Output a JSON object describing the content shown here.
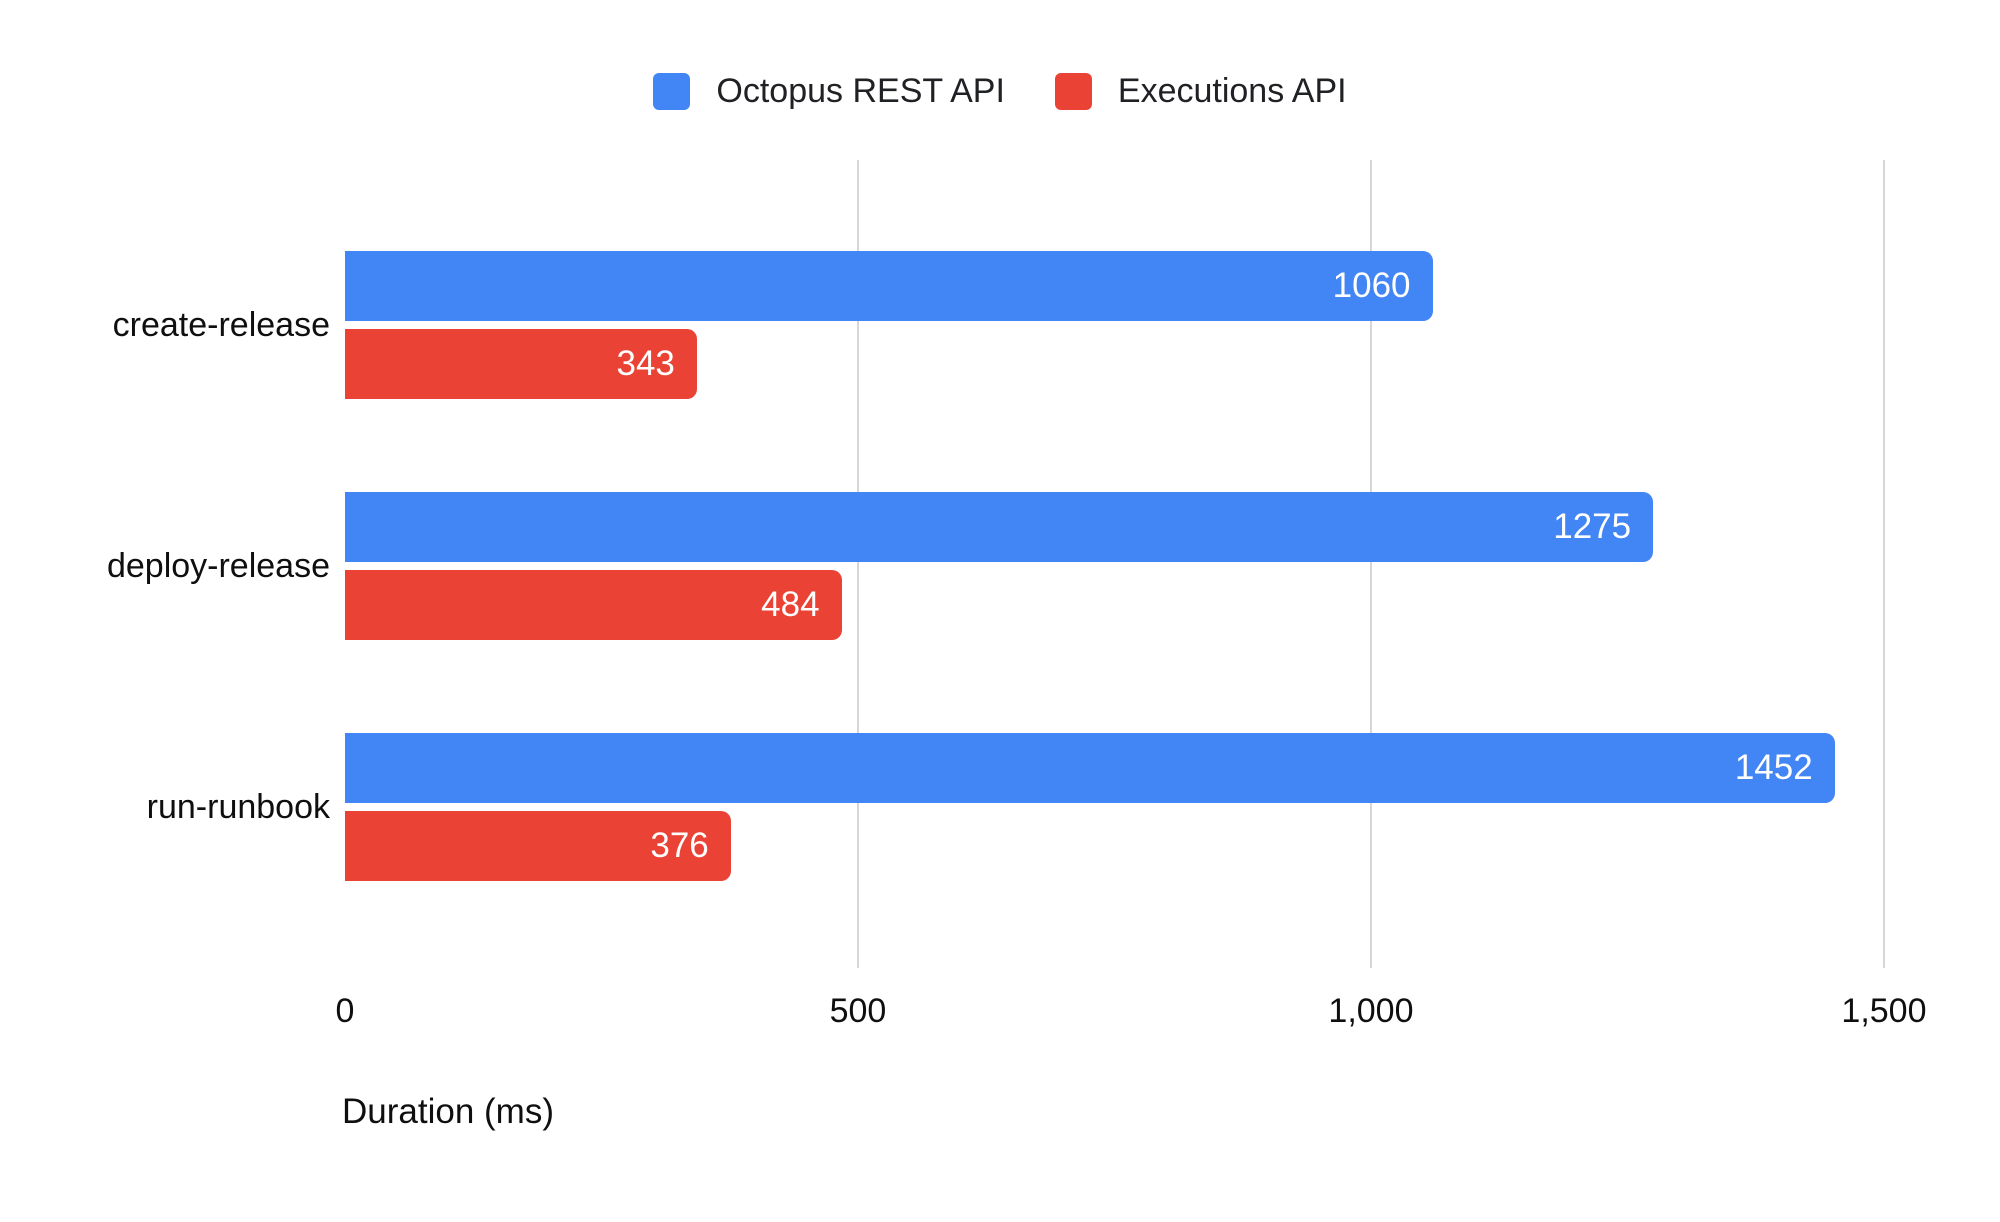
{
  "chart_data": {
    "type": "bar",
    "orientation": "horizontal",
    "title": "",
    "xlabel": "Duration (ms)",
    "ylabel": "",
    "categories": [
      "create-release",
      "deploy-release",
      "run-runbook"
    ],
    "series": [
      {
        "name": "Octopus REST API",
        "color": "#4285F4",
        "values": [
          1060,
          1275,
          1452
        ]
      },
      {
        "name": "Executions API",
        "color": "#EA4335",
        "values": [
          343,
          484,
          376
        ]
      }
    ],
    "x_ticks": [
      {
        "label": "0",
        "value": 0
      },
      {
        "label": "500",
        "value": 500
      },
      {
        "label": "1,000",
        "value": 1000
      },
      {
        "label": "1,500",
        "value": 1500
      }
    ],
    "xlim": [
      0,
      1540
    ],
    "grid": true,
    "legend_position": "top",
    "value_labels": "inside-end",
    "colors": {
      "background": "#ffffff",
      "gridline": "#d6d6d6",
      "axis_text": "#0f0f0f",
      "legend_text": "#202124",
      "value_text": "#ffffff"
    }
  }
}
